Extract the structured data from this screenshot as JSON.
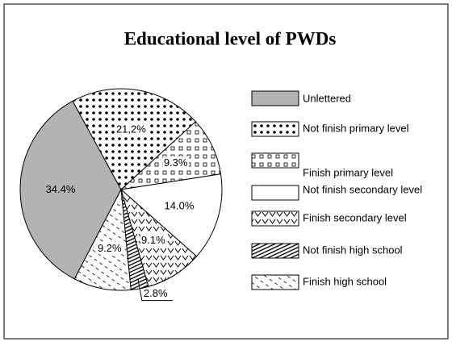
{
  "chart_data": {
    "type": "pie",
    "title": "Educational level of PWDs",
    "categories": [
      "Unlettered",
      "Not finish primary level",
      "Finish primary level",
      "Not finish secondary level",
      "Finish secondary level",
      "Not finish high school",
      "Finish high school"
    ],
    "values": [
      34.4,
      21.2,
      9.3,
      14.0,
      9.1,
      2.8,
      9.2
    ],
    "value_labels": [
      "34.4%",
      "21,2%",
      "9.3%",
      "14.0%",
      "9.1%",
      "2.8%",
      "9.2%"
    ],
    "colors": [
      "#b3b3b3",
      "#ffffff",
      "#ffffff",
      "#ffffff",
      "#ffffff",
      "#ffffff",
      "#ffffff"
    ],
    "legend": "right"
  }
}
